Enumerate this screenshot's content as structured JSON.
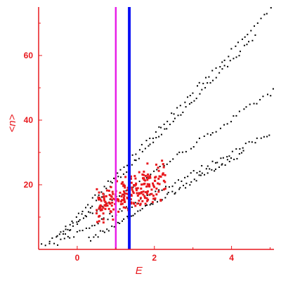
{
  "chart_data": {
    "type": "scatter",
    "xlabel": "E",
    "ylabel": "<n>",
    "xlim": [
      -1.0,
      5.1
    ],
    "ylim": [
      0,
      75
    ],
    "xticks": [
      0,
      2,
      4
    ],
    "yticks": [
      20,
      40,
      60
    ],
    "grid": false,
    "colors": {
      "axis": "#e8191e",
      "background_points": "#000000",
      "highlight_points": "#e8191e",
      "line_magenta": "#e81ee8",
      "line_blue": "#0a10f5"
    },
    "vertical_lines": [
      {
        "x": 1.0,
        "color": "#e81ee8"
      },
      {
        "x": 1.35,
        "color": "#0a10f5"
      }
    ],
    "background_bands": [
      {
        "x_from": -0.9,
        "x_to": 5.1,
        "y_from": 1,
        "y_to": 49
      },
      {
        "x_from": -0.7,
        "x_to": 5.0,
        "y_from": 1.5,
        "y_to": 74
      },
      {
        "x_from": -0.5,
        "x_to": 5.0,
        "y_from": 2,
        "y_to": 36
      },
      {
        "x_from": -0.3,
        "x_to": 4.6,
        "y_from": 5,
        "y_to": 66
      },
      {
        "x_from": 0.3,
        "x_to": 4.3,
        "y_from": 3,
        "y_to": 30
      }
    ],
    "highlight_cluster": {
      "x_range": [
        0.5,
        2.3
      ],
      "y_range": [
        8,
        31
      ]
    }
  }
}
